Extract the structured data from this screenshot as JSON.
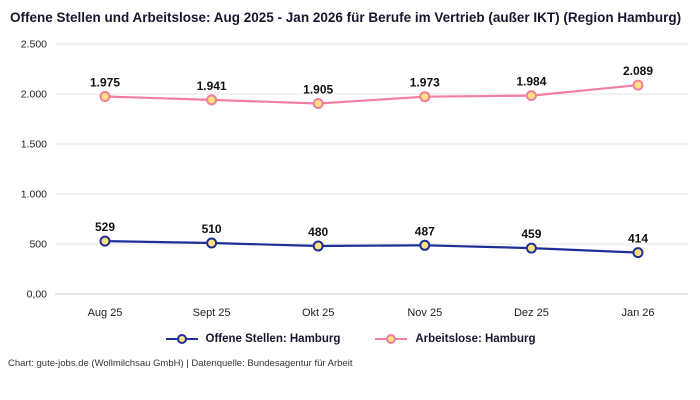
{
  "title": "Offene Stellen und Arbeitslose: Aug 2025 - Jan 2026 für Berufe im Vertrieb (außer IKT) (Region Hamburg)",
  "footer": "Chart: gute-jobs.de (Wollmilchsau GmbH) | Datenquelle: Bundesagentur für Arbeit",
  "colors": {
    "offene_stellen": "#1e2f97",
    "arbeitslose": "#f27f9f",
    "marker_fill": "#ffe180",
    "gridline": "#e4e4e4",
    "baseline": "#c9c9c9",
    "text": "#222222",
    "label": "#111111"
  },
  "chart_data": {
    "type": "line",
    "title": "Offene Stellen und Arbeitslose: Aug 2025 - Jan 2026 für Berufe im Vertrieb (außer IKT) (Region Hamburg)",
    "categories": [
      "Aug 25",
      "Sept 25",
      "Okt 25",
      "Nov 25",
      "Dez 25",
      "Jan 26"
    ],
    "series": [
      {
        "name": "Offene Stellen: Hamburg",
        "color": "#1e2f97",
        "values": [
          529,
          510,
          480,
          487,
          459,
          414
        ],
        "labels": [
          "529",
          "510",
          "480",
          "487",
          "459",
          "414"
        ]
      },
      {
        "name": "Arbeitslose: Hamburg",
        "color": "#f27f9f",
        "values": [
          1975,
          1941,
          1905,
          1973,
          1984,
          2089
        ],
        "labels": [
          "1.975",
          "1.941",
          "1.905",
          "1.973",
          "1.984",
          "2.089"
        ]
      }
    ],
    "marker_fill": "#ffe180",
    "xlabel": "",
    "ylabel": "",
    "ylim": [
      0,
      2500
    ],
    "yticks": [
      0,
      500,
      1000,
      1500,
      2000,
      2500
    ],
    "ytick_labels": [
      "0,00",
      "500",
      "1.000",
      "1.500",
      "2.000",
      "2.500"
    ],
    "grid": true,
    "legend_position": "bottom"
  }
}
